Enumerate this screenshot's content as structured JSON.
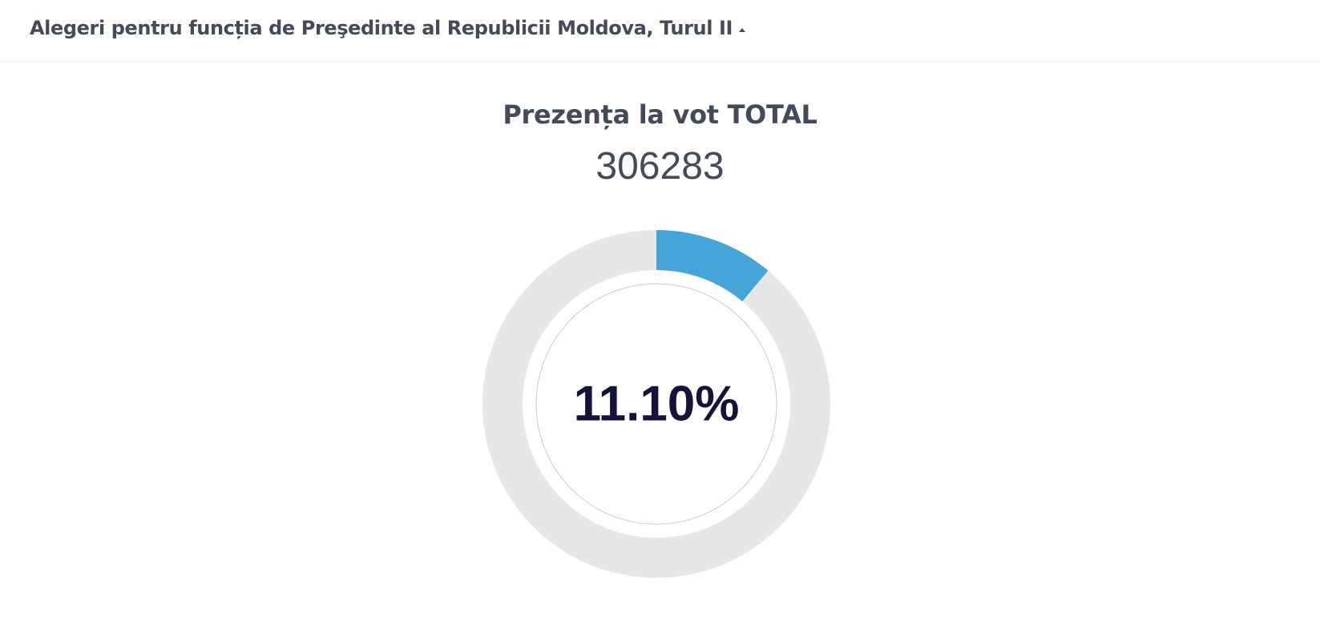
{
  "header": {
    "title": "Alegeri pentru funcția de Preşedinte al Republicii Moldova, Turul II"
  },
  "turnout": {
    "title": "Prezența la vot TOTAL",
    "count": "306283",
    "percent_label": "11.10%"
  },
  "chart_data": {
    "type": "pie",
    "values": [
      11.1,
      88.9
    ],
    "center_label": "11.10%"
  },
  "colors": {
    "filled": "#45a4d8",
    "remaining": "#e6e7e9",
    "label": "#16133a",
    "text": "#454a59"
  }
}
